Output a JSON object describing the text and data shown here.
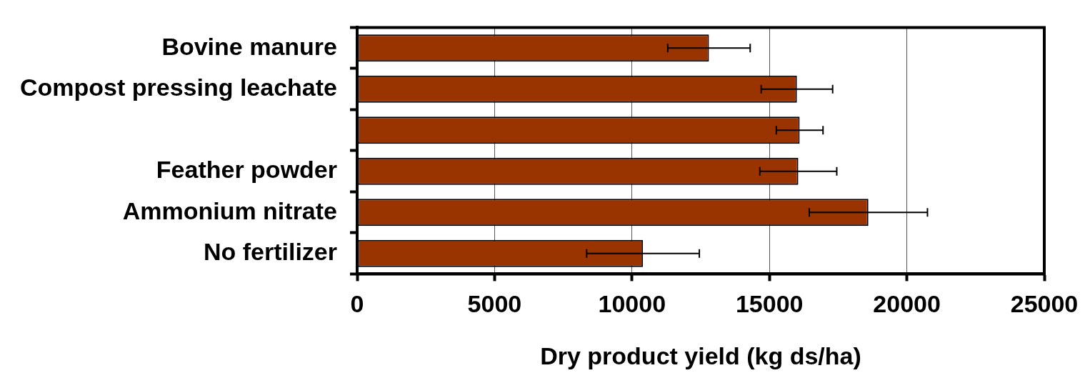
{
  "chart_data": {
    "type": "bar",
    "orientation": "horizontal",
    "xlabel": "Dry product yield (kg ds/ha)",
    "categories": [
      "Bovine manure",
      "Compost pressing leachate",
      null,
      "Feather powder",
      "Ammonium nitrate",
      "No fertilizer"
    ],
    "values": [
      12800,
      16000,
      16100,
      16050,
      18600,
      10400
    ],
    "errors": [
      1500,
      1300,
      850,
      1400,
      2150,
      2050
    ],
    "color": "#993300",
    "xlim": [
      0,
      25000
    ],
    "xticks": [
      0,
      5000,
      10000,
      15000,
      20000,
      25000
    ],
    "grid": "x",
    "legend": false
  }
}
